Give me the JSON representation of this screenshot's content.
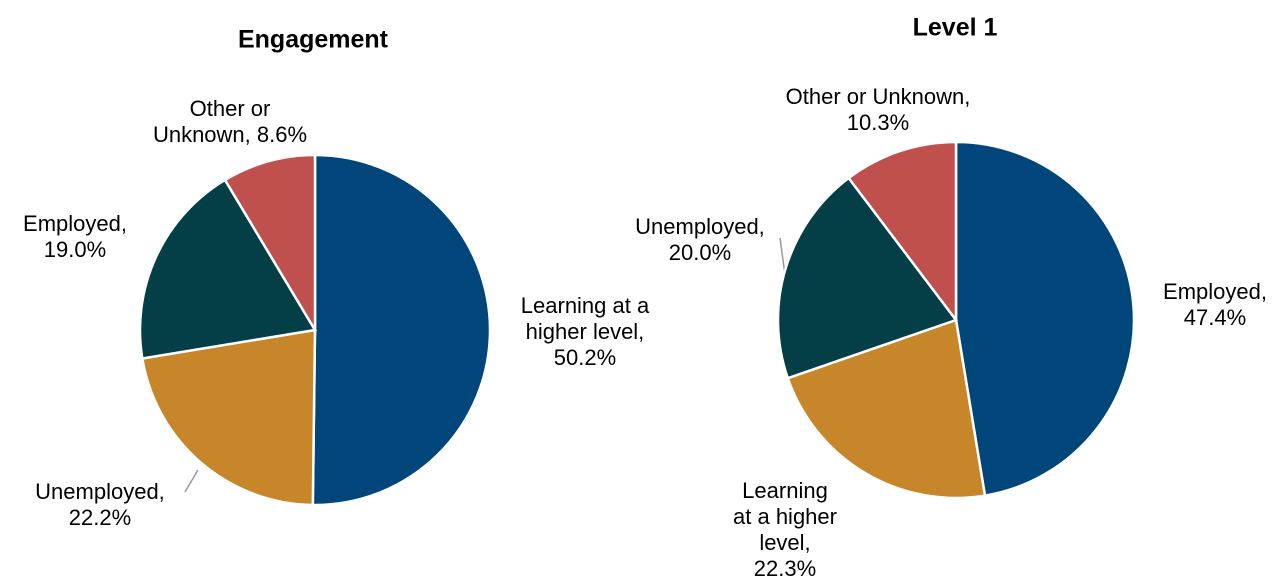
{
  "chart_data": [
    {
      "type": "pie",
      "title": "Engagement",
      "values": [
        50.2,
        22.2,
        19.0,
        8.6
      ],
      "value_labels": [
        "Learning at a higher level, 50.2%",
        "Unemployed, 22.2%",
        "Employed, 19.0%",
        "Other or Unknown, 8.6%"
      ],
      "colors": [
        "#00467a",
        "#c8862a",
        "#043f47",
        "#c0504d"
      ]
    },
    {
      "type": "pie",
      "title": "Level 1",
      "values": [
        47.4,
        22.3,
        20.0,
        10.3
      ],
      "value_labels": [
        "Employed, 47.4%",
        "Learning at a higher level, 22.3%",
        "Unemployed, 20.0%",
        "Other or Unknown, 10.3%"
      ],
      "colors": [
        "#00467a",
        "#c8862a",
        "#043f47",
        "#c0504d"
      ]
    }
  ]
}
